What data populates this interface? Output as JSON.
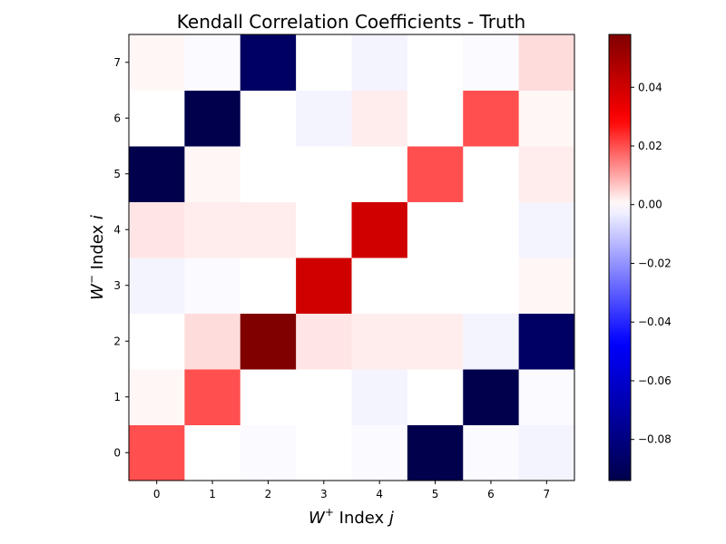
{
  "chart_data": {
    "type": "heatmap",
    "title": "Kendall Correlation Coefficients - Truth",
    "xlabel": {
      "base": "W",
      "sup": "+",
      "mid": " Index ",
      "var": "j"
    },
    "ylabel": {
      "base": "W",
      "sup": "−",
      "mid": " Index ",
      "var": "i"
    },
    "x_ticks": [
      "0",
      "1",
      "2",
      "3",
      "4",
      "5",
      "6",
      "7"
    ],
    "y_ticks": [
      "0",
      "1",
      "2",
      "3",
      "4",
      "5",
      "6",
      "7"
    ],
    "colormap": "seismic",
    "vmin": -0.094,
    "vmax": 0.058,
    "colorbar_ticks": [
      {
        "value": 0.04,
        "label": "0.04"
      },
      {
        "value": 0.02,
        "label": "0.02"
      },
      {
        "value": 0.0,
        "label": "0.00"
      },
      {
        "value": -0.02,
        "label": "−0.02"
      },
      {
        "value": -0.04,
        "label": "−0.04"
      },
      {
        "value": -0.06,
        "label": "−0.06"
      },
      {
        "value": -0.08,
        "label": "−0.08"
      }
    ],
    "matrix_rows_index_0_to_7": [
      [
        0.02,
        0.0,
        -0.001,
        0.0,
        -0.001,
        -0.094,
        -0.001,
        -0.002
      ],
      [
        0.001,
        0.02,
        0.0,
        0.0,
        -0.002,
        0.0,
        -0.094,
        -0.001
      ],
      [
        0.0,
        0.004,
        0.058,
        0.003,
        0.002,
        0.002,
        -0.002,
        -0.088
      ],
      [
        -0.002,
        -0.001,
        0.0,
        0.04,
        0.0,
        0.0,
        0.0,
        0.001
      ],
      [
        0.003,
        0.002,
        0.002,
        0.0,
        0.04,
        0.0,
        0.0,
        -0.002
      ],
      [
        -0.094,
        0.001,
        0.0,
        0.0,
        0.0,
        0.02,
        0.0,
        0.002
      ],
      [
        0.0,
        -0.094,
        0.0,
        -0.002,
        0.002,
        0.0,
        0.02,
        0.001
      ],
      [
        0.001,
        -0.001,
        -0.088,
        0.0,
        -0.002,
        0.0,
        -0.001,
        0.004
      ]
    ]
  }
}
